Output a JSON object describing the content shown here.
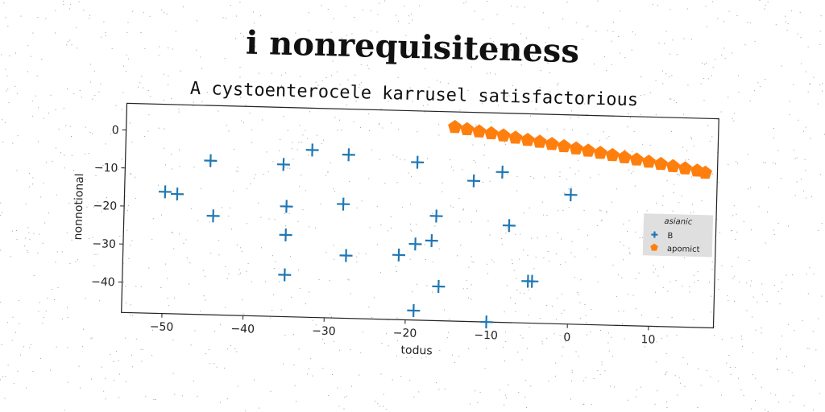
{
  "chart_data": {
    "type": "scatter",
    "title": "i nonrequisiteness",
    "subtitle": "A cystoenterocele karrusel satisfactorious",
    "xlabel": "todus",
    "ylabel": "nonnotional",
    "xlim": [
      -55,
      18
    ],
    "ylim": [
      -48,
      7
    ],
    "xticks": [
      -50,
      -40,
      -30,
      -20,
      -10,
      0,
      10
    ],
    "yticks": [
      0,
      -10,
      -20,
      -30,
      -40
    ],
    "grid": false,
    "legend": {
      "title": "asianic",
      "placement": "right"
    },
    "series": [
      {
        "name": "B",
        "marker": "plus",
        "color": "#1f77b4",
        "points": [
          [
            -50,
            -16
          ],
          [
            -48.5,
            -16.5
          ],
          [
            -44.5,
            -7.5
          ],
          [
            -44,
            -22
          ],
          [
            -35.5,
            -8
          ],
          [
            -35,
            -19
          ],
          [
            -35,
            -26.5
          ],
          [
            -35,
            -37
          ],
          [
            -32,
            -4
          ],
          [
            -28,
            -18
          ],
          [
            -27.5,
            -5
          ],
          [
            -27.5,
            -31.5
          ],
          [
            -21,
            -31
          ],
          [
            -19,
            -6.5
          ],
          [
            -19,
            -28
          ],
          [
            -19,
            -45.5
          ],
          [
            -17,
            -27
          ],
          [
            -16.5,
            -20.5
          ],
          [
            -16,
            -39
          ],
          [
            -12,
            -11
          ],
          [
            -10,
            -48
          ],
          [
            -8.5,
            -8.5
          ],
          [
            -7.5,
            -22.5
          ],
          [
            -5,
            -37
          ],
          [
            -4.5,
            -37
          ],
          [
            0,
            -14
          ]
        ]
      },
      {
        "name": "apomict",
        "marker": "pentagon",
        "color": "#ff7f0e",
        "points": [
          [
            -14.5,
            3
          ],
          [
            -13,
            2.5
          ],
          [
            -11.5,
            2
          ],
          [
            -10,
            1.6
          ],
          [
            -8.5,
            1.1
          ],
          [
            -7,
            0.6
          ],
          [
            -5.5,
            0.1
          ],
          [
            -4,
            -0.3
          ],
          [
            -2.5,
            -0.8
          ],
          [
            -1,
            -1.3
          ],
          [
            0.5,
            -1.8
          ],
          [
            2,
            -2.3
          ],
          [
            3.5,
            -2.8
          ],
          [
            5,
            -3.3
          ],
          [
            6.5,
            -3.8
          ],
          [
            8,
            -4.3
          ],
          [
            9.5,
            -4.8
          ],
          [
            11,
            -5.3
          ],
          [
            12.5,
            -5.8
          ],
          [
            14,
            -6.3
          ],
          [
            15.5,
            -6.8
          ],
          [
            16.5,
            -7.3
          ]
        ]
      }
    ]
  }
}
